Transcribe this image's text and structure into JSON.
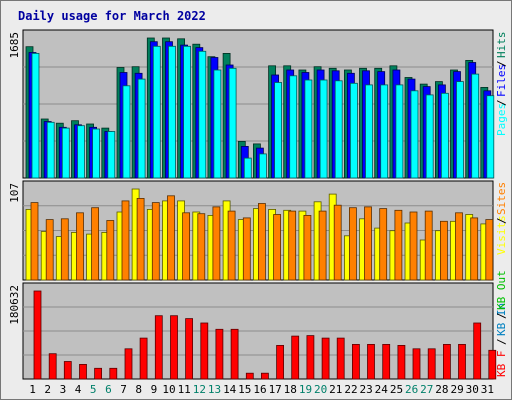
{
  "chart_data": {
    "type": "bar",
    "title": "Daily usage for March 2022",
    "categories": [
      "1",
      "2",
      "3",
      "4",
      "5",
      "6",
      "7",
      "8",
      "9",
      "10",
      "11",
      "12",
      "13",
      "14",
      "15",
      "16",
      "17",
      "18",
      "19",
      "20",
      "21",
      "22",
      "23",
      "24",
      "25",
      "26",
      "27",
      "28",
      "29",
      "30",
      "31"
    ],
    "weekend_days": [
      "5",
      "6",
      "12",
      "13",
      "19",
      "20",
      "26",
      "27"
    ],
    "panels": [
      {
        "id": "hits",
        "max_label": "1685",
        "ymax": 1685,
        "series": [
          {
            "name": "Hits",
            "color": "#00805c",
            "values": [
              1580,
              710,
              660,
              690,
              650,
              600,
              1330,
              1340,
              1685,
              1685,
              1675,
              1610,
              1460,
              1500,
              440,
              410,
              1350,
              1350,
              1300,
              1340,
              1320,
              1300,
              1320,
              1320,
              1350,
              1210,
              1130,
              1160,
              1300,
              1415,
              1090
            ]
          },
          {
            "name": "Files",
            "color": "#0000ff",
            "values": [
              1510,
              680,
              610,
              640,
              610,
              560,
              1270,
              1260,
              1640,
              1640,
              1600,
              1570,
              1450,
              1360,
              380,
              360,
              1240,
              1300,
              1270,
              1300,
              1290,
              1260,
              1290,
              1280,
              1300,
              1190,
              1100,
              1120,
              1280,
              1390,
              1050
            ]
          },
          {
            "name": "Pages",
            "color": "#00ffff",
            "values": [
              1500,
              670,
              600,
              630,
              590,
              560,
              1110,
              1190,
              1585,
              1585,
              1585,
              1525,
              1300,
              1320,
              240,
              290,
              1150,
              1230,
              1180,
              1180,
              1170,
              1140,
              1120,
              1120,
              1120,
              1050,
              1000,
              1020,
              1160,
              1250,
              990
            ]
          }
        ]
      },
      {
        "id": "visits",
        "max_label": "107",
        "ymax": 107,
        "series": [
          {
            "name": "Visits",
            "color": "#ffff00",
            "values": [
              83,
              57,
              51,
              56,
              54,
              56,
              80,
              107,
              83,
              93,
              93,
              80,
              76,
              93,
              71,
              84,
              83,
              82,
              81,
              92,
              101,
              52,
              72,
              61,
              58,
              67,
              47,
              58,
              69,
              77,
              66
            ]
          },
          {
            "name": "Sites",
            "color": "#ff8000",
            "values": [
              91,
              71,
              72,
              79,
              85,
              70,
              93,
              96,
              91,
              99,
              79,
              78,
              86,
              81,
              73,
              90,
              77,
              81,
              76,
              81,
              88,
              85,
              86,
              84,
              82,
              80,
              81,
              69,
              79,
              73,
              71
            ]
          }
        ]
      },
      {
        "id": "kbytes",
        "max_label": "180632",
        "ymax": 180632,
        "series": [
          {
            "name": "KB Out",
            "color": "#00c000",
            "values": [
              0,
              0,
              0,
              0,
              0,
              0,
              0,
              0,
              0,
              0,
              0,
              0,
              0,
              0,
              0,
              0,
              0,
              0,
              0,
              0,
              0,
              0,
              0,
              0,
              0,
              0,
              0,
              0,
              0,
              0,
              0
            ]
          },
          {
            "name": "KB In",
            "color": "#0080c0",
            "values": [
              0,
              0,
              0,
              0,
              0,
              0,
              0,
              0,
              0,
              0,
              0,
              0,
              0,
              0,
              0,
              0,
              0,
              0,
              0,
              0,
              0,
              0,
              0,
              0,
              0,
              0,
              0,
              0,
              0,
              0,
              0
            ]
          },
          {
            "name": "KB F",
            "color": "#ff0000",
            "values": [
              180632,
              52000,
              36000,
              30000,
              22000,
              22000,
              62000,
              84000,
              130000,
              130000,
              124000,
              115000,
              102000,
              102000,
              12000,
              12000,
              69000,
              88000,
              89000,
              84000,
              84000,
              71000,
              71000,
              71000,
              69000,
              62000,
              62000,
              71000,
              71000,
              115000,
              59000
            ]
          }
        ]
      }
    ],
    "grid": true
  }
}
